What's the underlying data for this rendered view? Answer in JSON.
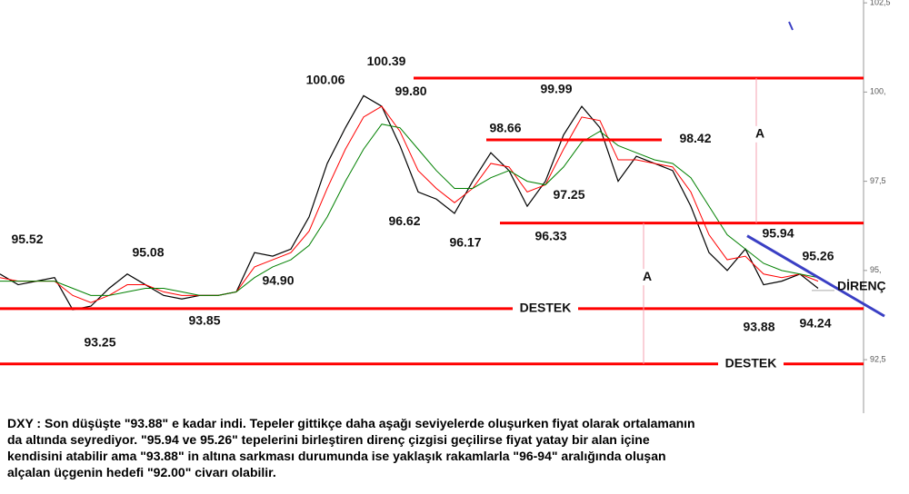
{
  "chart_data": {
    "type": "line",
    "categories": [
      null,
      null,
      null,
      null,
      null,
      null,
      null,
      null,
      null,
      null,
      null,
      null,
      null,
      null,
      null,
      null,
      null,
      null,
      null,
      null,
      null,
      null,
      null,
      null,
      null,
      null,
      null,
      null,
      null,
      null,
      null,
      null,
      null,
      null,
      null,
      null,
      null,
      null,
      null,
      null,
      null,
      null,
      null,
      null,
      null,
      null
    ],
    "series": [
      {
        "color": "#000000",
        "values": [
          94.9,
          94.6,
          94.7,
          94.8,
          93.9,
          94.0,
          94.5,
          94.9,
          94.6,
          94.3,
          94.2,
          94.3,
          94.3,
          94.4,
          95.5,
          95.4,
          95.6,
          96.5,
          98.0,
          99.0,
          99.9,
          99.6,
          98.5,
          97.2,
          97.0,
          96.6,
          97.5,
          98.3,
          97.8,
          96.8,
          97.5,
          98.8,
          99.6,
          99.0,
          97.5,
          98.2,
          98.0,
          97.8,
          96.8,
          95.5,
          95.0,
          95.6,
          94.6,
          94.7,
          94.9,
          94.5
        ]
      },
      {
        "color": "#ff0000",
        "values": [
          94.8,
          94.7,
          94.7,
          94.7,
          94.3,
          94.1,
          94.3,
          94.6,
          94.6,
          94.4,
          94.3,
          94.3,
          94.3,
          94.4,
          95.1,
          95.3,
          95.5,
          96.1,
          97.3,
          98.4,
          99.3,
          99.6,
          98.9,
          97.8,
          97.3,
          96.9,
          97.3,
          98.0,
          97.9,
          97.2,
          97.4,
          98.4,
          99.3,
          99.2,
          98.1,
          98.1,
          98.0,
          97.9,
          97.2,
          96.0,
          95.3,
          95.4,
          94.9,
          94.8,
          94.9,
          94.7
        ]
      },
      {
        "color": "#008000",
        "values": [
          94.7,
          94.7,
          94.7,
          94.7,
          94.5,
          94.3,
          94.3,
          94.4,
          94.5,
          94.5,
          94.4,
          94.3,
          94.3,
          94.4,
          94.8,
          95.1,
          95.3,
          95.7,
          96.5,
          97.5,
          98.4,
          99.1,
          99.0,
          98.4,
          97.8,
          97.3,
          97.3,
          97.6,
          97.8,
          97.5,
          97.4,
          97.9,
          98.6,
          98.9,
          98.5,
          98.3,
          98.1,
          98.0,
          97.6,
          96.8,
          96.0,
          95.6,
          95.2,
          95.0,
          94.9,
          94.8
        ]
      }
    ],
    "ylim": [
      91,
      102.58
    ],
    "yticks": [
      {
        "value": 102.5,
        "label": "102,5"
      },
      {
        "value": 100,
        "label": "100,"
      },
      {
        "value": 97.5,
        "label": "97,5"
      },
      {
        "value": 95,
        "label": "95,"
      },
      {
        "value": 92.5,
        "label": "92,5"
      }
    ],
    "levels": [
      {
        "value": 100.39,
        "color": "#ff0000"
      },
      {
        "value": 98.66,
        "color": "#ff0000"
      },
      {
        "value": 96.33,
        "color": "#ff0000"
      },
      {
        "value": 93.93,
        "color": "#ff0000",
        "label": "DESTEK"
      },
      {
        "value": 92.38,
        "color": "#ff0000",
        "label": "DESTEK"
      }
    ],
    "measures": [
      {
        "label": "A",
        "values": [
          100.39,
          96.33
        ],
        "color": "#f4a0b0"
      },
      {
        "label": "A",
        "values": [
          96.33,
          92.38
        ],
        "color": "#f4a0b0"
      }
    ],
    "trendline": {
      "label": "DİRENÇ",
      "color": "#3a3fc4",
      "values": [
        95.97,
        93.72
      ]
    },
    "annotations": [
      {
        "value": 100.39,
        "label": "100.39"
      },
      {
        "value": 100.06,
        "label": "100.06"
      },
      {
        "value": 99.8,
        "label": "99.80"
      },
      {
        "value": 99.99,
        "label": "99.99"
      },
      {
        "value": 98.66,
        "label": "98.66"
      },
      {
        "value": 98.42,
        "label": "98.42"
      },
      {
        "value": 97.25,
        "label": "97.25"
      },
      {
        "value": 96.62,
        "label": "96.62"
      },
      {
        "value": 96.17,
        "label": "96.17"
      },
      {
        "value": 96.33,
        "label": "96.33"
      },
      {
        "value": 95.94,
        "label": "95.94"
      },
      {
        "value": 95.52,
        "label": "95.52"
      },
      {
        "value": 95.08,
        "label": "95.08"
      },
      {
        "value": 95.26,
        "label": "95.26"
      },
      {
        "value": 94.9,
        "label": "94.90"
      },
      {
        "value": 93.85,
        "label": "93.85"
      },
      {
        "value": 93.25,
        "label": "93.25"
      },
      {
        "value": 93.88,
        "label": "93.88"
      },
      {
        "value": 94.24,
        "label": "94.24"
      }
    ],
    "note_lines": [
      "DXY : Son düşüşte \"93.88\" e kadar indi. Tepeler gittikçe daha aşağı seviyelerde oluşurken fiyat olarak ortalamanın",
      "da altında seyrediyor. \"95.94 ve 95.26\" tepelerini birleştiren direnç çizgisi geçilirse fiyat yatay bir alan içine",
      "kendisini atabilir ama \"93.88\" in altına sarkması durumunda ise yaklaşık rakamlarla \"96-94\" aralığında oluşan",
      "alçalan üçgenin hedefi \"92.00\" civarı olabilir."
    ]
  }
}
